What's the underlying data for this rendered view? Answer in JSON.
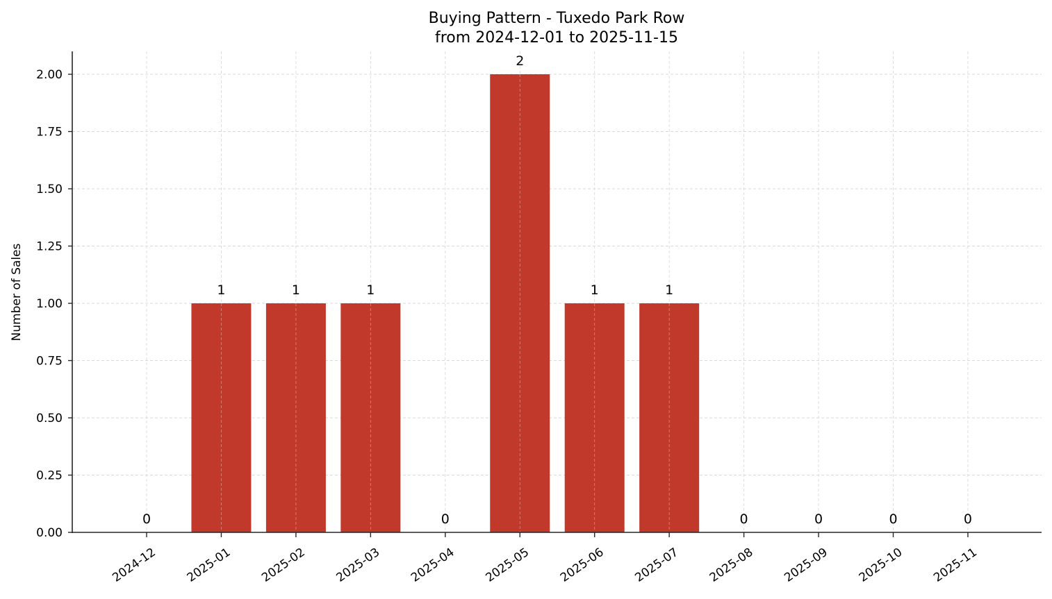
{
  "chart_data": {
    "type": "bar",
    "title": "Buying Pattern - Tuxedo Park Row",
    "subtitle": "from 2024-12-01 to 2025-11-15",
    "xlabel": "",
    "ylabel": "Number of Sales",
    "categories": [
      "2024-12",
      "2025-01",
      "2025-02",
      "2025-03",
      "2025-04",
      "2025-05",
      "2025-06",
      "2025-07",
      "2025-08",
      "2025-09",
      "2025-10",
      "2025-11"
    ],
    "values": [
      0,
      1,
      1,
      1,
      0,
      2,
      1,
      1,
      0,
      0,
      0,
      0
    ],
    "data_labels": [
      "0",
      "1",
      "1",
      "1",
      "0",
      "2",
      "1",
      "1",
      "0",
      "0",
      "0",
      "0"
    ],
    "ylim": [
      0,
      2.1
    ],
    "yticks": [
      "0.00",
      "0.25",
      "0.50",
      "0.75",
      "1.00",
      "1.25",
      "1.50",
      "1.75",
      "2.00"
    ],
    "ytick_values": [
      0,
      0.25,
      0.5,
      0.75,
      1.0,
      1.25,
      1.5,
      1.75,
      2.0
    ],
    "grid": true,
    "grid_style": "dashed",
    "legend": null,
    "xtick_rotation": -35,
    "colors": {
      "bar": "#c0392b",
      "grid": "#d9d9d9",
      "axis": "#262626"
    }
  }
}
